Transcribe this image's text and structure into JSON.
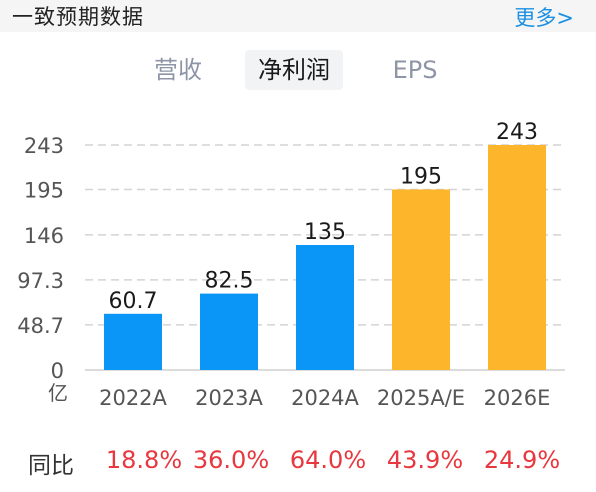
{
  "header": {
    "title": "一致预期数据",
    "more": "更多>"
  },
  "tabs": [
    {
      "label": "营收",
      "active": false
    },
    {
      "label": "净利润",
      "active": true
    },
    {
      "label": "EPS",
      "active": false
    }
  ],
  "colors": {
    "actual_bar": "#0a96f7",
    "estimate_bar": "#fdb52b",
    "yoy_text": "#e8373e",
    "more_link": "#1a8fe3"
  },
  "chart_data": {
    "type": "bar",
    "categories": [
      "2022A",
      "2023A",
      "2024A",
      "2025A/E",
      "2026E"
    ],
    "values": [
      60.7,
      82.5,
      135,
      195,
      243
    ],
    "value_labels": [
      "60.7",
      "82.5",
      "135",
      "195",
      "243"
    ],
    "bar_kind": [
      "actual",
      "actual",
      "actual",
      "estimate",
      "estimate"
    ],
    "y_ticks": [
      "0",
      "48.7",
      "97.3",
      "146",
      "195",
      "243"
    ],
    "y_tick_values": [
      0,
      48.7,
      97.3,
      146,
      195,
      243
    ],
    "y_unit": "亿",
    "ylim": [
      0,
      243
    ],
    "grid": true
  },
  "yoy": {
    "label": "同比",
    "values": [
      "18.8%",
      "36.0%",
      "64.0%",
      "43.9%",
      "24.9%"
    ]
  }
}
